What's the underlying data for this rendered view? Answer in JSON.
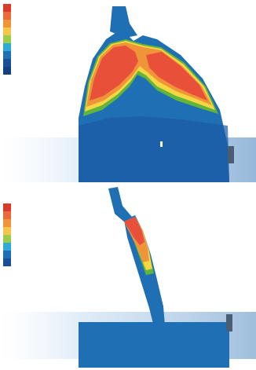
{
  "colors": {
    "red": "#e8503a",
    "orange": "#f0943a",
    "yellow": "#f4d742",
    "green": "#62b43a",
    "cyan": "#21b5d8",
    "blue": "#1f6fb5",
    "navy": "#1a4f95"
  },
  "top_legend": {
    "swatches": [
      "#d83a2c",
      "#e96a3a",
      "#f0943a",
      "#f4c64a",
      "#9ccc4a",
      "#2fa9d8",
      "#1f6fb5",
      "#1a4f95",
      "#153f80"
    ]
  },
  "bottom_legend": {
    "swatches": [
      "#d83a2c",
      "#e96a3a",
      "#f0943a",
      "#f4c64a",
      "#9ccc4a",
      "#2fa9d8",
      "#1f6fb5",
      "#1a4f95"
    ]
  }
}
